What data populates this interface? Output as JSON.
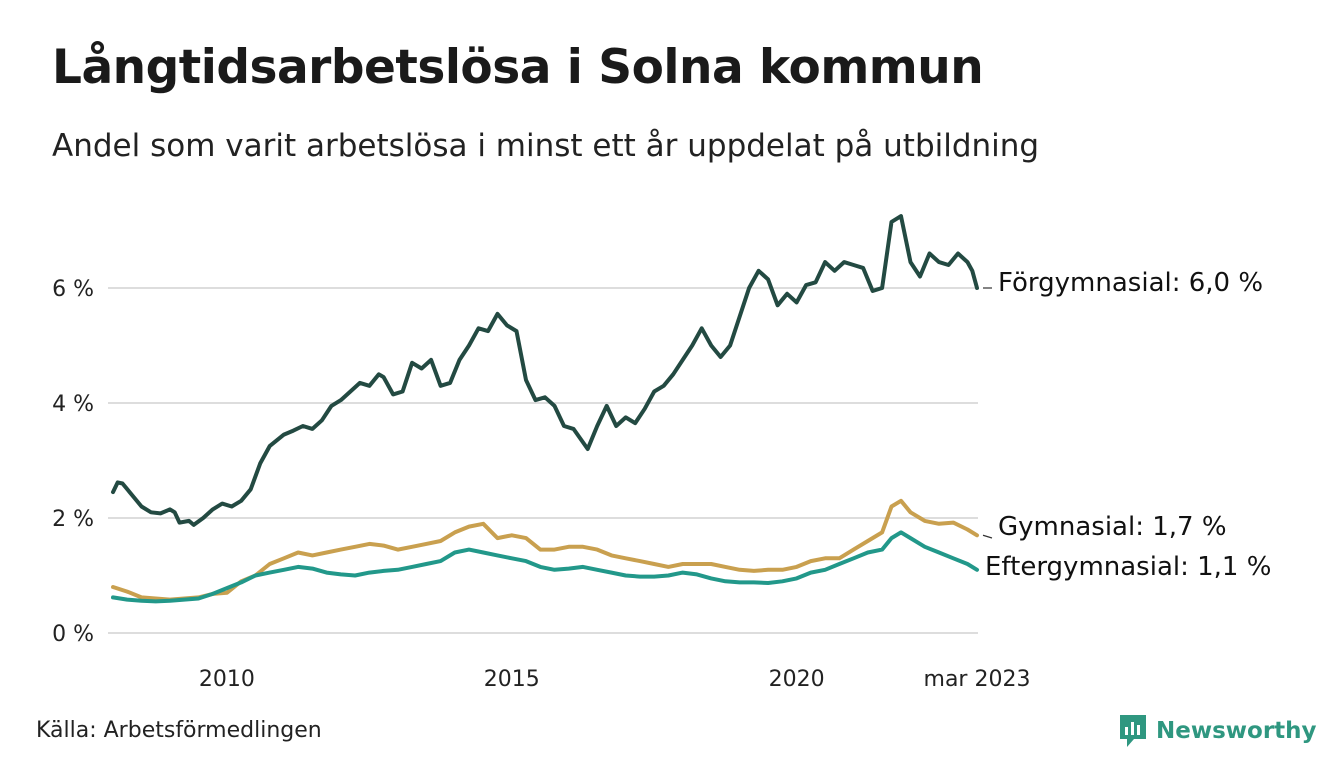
{
  "title": "Långtidsarbetslösa i Solna kommun",
  "subtitle": "Andel som varit arbetslösa i minst ett år uppdelat på utbildning",
  "source": "Källa: Arbetsförmedlingen",
  "logo_text": "Newsworthy",
  "colors": {
    "forgymnasial": "#234a42",
    "gymnasial": "#c9a04f",
    "eftergymnasial": "#22988a",
    "grid": "#dddddd",
    "logo": "#2f9780"
  },
  "chart_data": {
    "type": "line",
    "x_range": [
      "2008-01",
      "2023-03"
    ],
    "ylim": [
      0,
      7.5
    ],
    "yticks": [
      0,
      2,
      4,
      6
    ],
    "ytick_labels": [
      "0 %",
      "2 %",
      "4 %",
      "6 %"
    ],
    "xticks": [
      "2010-01",
      "2015-01",
      "2020-01",
      "2023-03"
    ],
    "xtick_labels": [
      "2010",
      "2015",
      "2020",
      "mar 2023"
    ],
    "grid": true,
    "series": [
      {
        "name": "Förgymnasial",
        "end_label": "Förgymnasial: 6,0 %",
        "color": "#234a42",
        "points": [
          [
            "2008-01",
            2.45
          ],
          [
            "2008-02",
            2.62
          ],
          [
            "2008-03",
            2.6
          ],
          [
            "2008-05",
            2.4
          ],
          [
            "2008-07",
            2.2
          ],
          [
            "2008-09",
            2.1
          ],
          [
            "2008-11",
            2.08
          ],
          [
            "2009-01",
            2.15
          ],
          [
            "2009-02",
            2.1
          ],
          [
            "2009-03",
            1.92
          ],
          [
            "2009-05",
            1.95
          ],
          [
            "2009-06",
            1.88
          ],
          [
            "2009-08",
            2.0
          ],
          [
            "2009-10",
            2.15
          ],
          [
            "2009-12",
            2.25
          ],
          [
            "2010-02",
            2.2
          ],
          [
            "2010-04",
            2.3
          ],
          [
            "2010-06",
            2.5
          ],
          [
            "2010-08",
            2.95
          ],
          [
            "2010-10",
            3.25
          ],
          [
            "2011-01",
            3.45
          ],
          [
            "2011-03",
            3.52
          ],
          [
            "2011-05",
            3.6
          ],
          [
            "2011-07",
            3.55
          ],
          [
            "2011-09",
            3.7
          ],
          [
            "2011-11",
            3.95
          ],
          [
            "2012-01",
            4.05
          ],
          [
            "2012-03",
            4.2
          ],
          [
            "2012-05",
            4.35
          ],
          [
            "2012-07",
            4.3
          ],
          [
            "2012-09",
            4.5
          ],
          [
            "2012-10",
            4.45
          ],
          [
            "2012-12",
            4.15
          ],
          [
            "2013-02",
            4.2
          ],
          [
            "2013-04",
            4.7
          ],
          [
            "2013-06",
            4.6
          ],
          [
            "2013-08",
            4.75
          ],
          [
            "2013-10",
            4.3
          ],
          [
            "2013-12",
            4.35
          ],
          [
            "2014-02",
            4.75
          ],
          [
            "2014-04",
            5.0
          ],
          [
            "2014-06",
            5.3
          ],
          [
            "2014-08",
            5.25
          ],
          [
            "2014-10",
            5.55
          ],
          [
            "2014-12",
            5.35
          ],
          [
            "2015-02",
            5.25
          ],
          [
            "2015-04",
            4.4
          ],
          [
            "2015-06",
            4.05
          ],
          [
            "2015-08",
            4.1
          ],
          [
            "2015-10",
            3.95
          ],
          [
            "2015-12",
            3.6
          ],
          [
            "2016-02",
            3.55
          ],
          [
            "2016-05",
            3.2
          ],
          [
            "2016-07",
            3.6
          ],
          [
            "2016-09",
            3.95
          ],
          [
            "2016-11",
            3.6
          ],
          [
            "2017-01",
            3.75
          ],
          [
            "2017-03",
            3.65
          ],
          [
            "2017-05",
            3.9
          ],
          [
            "2017-07",
            4.2
          ],
          [
            "2017-09",
            4.3
          ],
          [
            "2017-11",
            4.5
          ],
          [
            "2018-01",
            4.75
          ],
          [
            "2018-03",
            5.0
          ],
          [
            "2018-05",
            5.3
          ],
          [
            "2018-07",
            5.0
          ],
          [
            "2018-09",
            4.8
          ],
          [
            "2018-11",
            5.0
          ],
          [
            "2019-01",
            5.5
          ],
          [
            "2019-03",
            6.0
          ],
          [
            "2019-05",
            6.3
          ],
          [
            "2019-07",
            6.15
          ],
          [
            "2019-09",
            5.7
          ],
          [
            "2019-11",
            5.9
          ],
          [
            "2020-01",
            5.75
          ],
          [
            "2020-03",
            6.05
          ],
          [
            "2020-05",
            6.1
          ],
          [
            "2020-07",
            6.45
          ],
          [
            "2020-09",
            6.3
          ],
          [
            "2020-11",
            6.45
          ],
          [
            "2021-01",
            6.4
          ],
          [
            "2021-03",
            6.35
          ],
          [
            "2021-05",
            5.95
          ],
          [
            "2021-07",
            6.0
          ],
          [
            "2021-09",
            7.15
          ],
          [
            "2021-11",
            7.25
          ],
          [
            "2022-01",
            6.45
          ],
          [
            "2022-03",
            6.2
          ],
          [
            "2022-05",
            6.6
          ],
          [
            "2022-07",
            6.45
          ],
          [
            "2022-09",
            6.4
          ],
          [
            "2022-11",
            6.6
          ],
          [
            "2023-01",
            6.45
          ],
          [
            "2023-02",
            6.3
          ],
          [
            "2023-03",
            6.0
          ]
        ]
      },
      {
        "name": "Gymnasial",
        "end_label": "Gymnasial: 1,7 %",
        "color": "#c9a04f",
        "points": [
          [
            "2008-01",
            0.8
          ],
          [
            "2008-04",
            0.72
          ],
          [
            "2008-07",
            0.62
          ],
          [
            "2008-10",
            0.6
          ],
          [
            "2009-01",
            0.58
          ],
          [
            "2009-04",
            0.6
          ],
          [
            "2009-07",
            0.62
          ],
          [
            "2009-10",
            0.68
          ],
          [
            "2010-01",
            0.7
          ],
          [
            "2010-04",
            0.9
          ],
          [
            "2010-07",
            1.0
          ],
          [
            "2010-10",
            1.2
          ],
          [
            "2011-01",
            1.3
          ],
          [
            "2011-04",
            1.4
          ],
          [
            "2011-07",
            1.35
          ],
          [
            "2011-10",
            1.4
          ],
          [
            "2012-01",
            1.45
          ],
          [
            "2012-04",
            1.5
          ],
          [
            "2012-07",
            1.55
          ],
          [
            "2012-10",
            1.52
          ],
          [
            "2013-01",
            1.45
          ],
          [
            "2013-04",
            1.5
          ],
          [
            "2013-07",
            1.55
          ],
          [
            "2013-10",
            1.6
          ],
          [
            "2014-01",
            1.75
          ],
          [
            "2014-04",
            1.85
          ],
          [
            "2014-07",
            1.9
          ],
          [
            "2014-10",
            1.65
          ],
          [
            "2015-01",
            1.7
          ],
          [
            "2015-04",
            1.65
          ],
          [
            "2015-07",
            1.45
          ],
          [
            "2015-10",
            1.45
          ],
          [
            "2016-01",
            1.5
          ],
          [
            "2016-04",
            1.5
          ],
          [
            "2016-07",
            1.45
          ],
          [
            "2016-10",
            1.35
          ],
          [
            "2017-01",
            1.3
          ],
          [
            "2017-04",
            1.25
          ],
          [
            "2017-07",
            1.2
          ],
          [
            "2017-10",
            1.15
          ],
          [
            "2018-01",
            1.2
          ],
          [
            "2018-04",
            1.2
          ],
          [
            "2018-07",
            1.2
          ],
          [
            "2018-10",
            1.15
          ],
          [
            "2019-01",
            1.1
          ],
          [
            "2019-04",
            1.08
          ],
          [
            "2019-07",
            1.1
          ],
          [
            "2019-10",
            1.1
          ],
          [
            "2020-01",
            1.15
          ],
          [
            "2020-04",
            1.25
          ],
          [
            "2020-07",
            1.3
          ],
          [
            "2020-10",
            1.3
          ],
          [
            "2021-01",
            1.45
          ],
          [
            "2021-04",
            1.6
          ],
          [
            "2021-07",
            1.75
          ],
          [
            "2021-09",
            2.2
          ],
          [
            "2021-11",
            2.3
          ],
          [
            "2022-01",
            2.1
          ],
          [
            "2022-04",
            1.95
          ],
          [
            "2022-07",
            1.9
          ],
          [
            "2022-10",
            1.92
          ],
          [
            "2023-01",
            1.8
          ],
          [
            "2023-03",
            1.7
          ]
        ]
      },
      {
        "name": "Eftergymnasial",
        "end_label": "Eftergymnasial: 1,1 %",
        "color": "#22988a",
        "points": [
          [
            "2008-01",
            0.62
          ],
          [
            "2008-04",
            0.58
          ],
          [
            "2008-07",
            0.56
          ],
          [
            "2008-10",
            0.55
          ],
          [
            "2009-01",
            0.56
          ],
          [
            "2009-04",
            0.58
          ],
          [
            "2009-07",
            0.6
          ],
          [
            "2009-10",
            0.68
          ],
          [
            "2010-01",
            0.78
          ],
          [
            "2010-04",
            0.88
          ],
          [
            "2010-07",
            1.0
          ],
          [
            "2010-10",
            1.05
          ],
          [
            "2011-01",
            1.1
          ],
          [
            "2011-04",
            1.15
          ],
          [
            "2011-07",
            1.12
          ],
          [
            "2011-10",
            1.05
          ],
          [
            "2012-01",
            1.02
          ],
          [
            "2012-04",
            1.0
          ],
          [
            "2012-07",
            1.05
          ],
          [
            "2012-10",
            1.08
          ],
          [
            "2013-01",
            1.1
          ],
          [
            "2013-04",
            1.15
          ],
          [
            "2013-07",
            1.2
          ],
          [
            "2013-10",
            1.25
          ],
          [
            "2014-01",
            1.4
          ],
          [
            "2014-04",
            1.45
          ],
          [
            "2014-07",
            1.4
          ],
          [
            "2014-10",
            1.35
          ],
          [
            "2015-01",
            1.3
          ],
          [
            "2015-04",
            1.25
          ],
          [
            "2015-07",
            1.15
          ],
          [
            "2015-10",
            1.1
          ],
          [
            "2016-01",
            1.12
          ],
          [
            "2016-04",
            1.15
          ],
          [
            "2016-07",
            1.1
          ],
          [
            "2016-10",
            1.05
          ],
          [
            "2017-01",
            1.0
          ],
          [
            "2017-04",
            0.98
          ],
          [
            "2017-07",
            0.98
          ],
          [
            "2017-10",
            1.0
          ],
          [
            "2018-01",
            1.05
          ],
          [
            "2018-04",
            1.02
          ],
          [
            "2018-07",
            0.95
          ],
          [
            "2018-10",
            0.9
          ],
          [
            "2019-01",
            0.88
          ],
          [
            "2019-04",
            0.88
          ],
          [
            "2019-07",
            0.87
          ],
          [
            "2019-10",
            0.9
          ],
          [
            "2020-01",
            0.95
          ],
          [
            "2020-04",
            1.05
          ],
          [
            "2020-07",
            1.1
          ],
          [
            "2020-10",
            1.2
          ],
          [
            "2021-01",
            1.3
          ],
          [
            "2021-04",
            1.4
          ],
          [
            "2021-07",
            1.45
          ],
          [
            "2021-09",
            1.65
          ],
          [
            "2021-11",
            1.75
          ],
          [
            "2022-01",
            1.65
          ],
          [
            "2022-04",
            1.5
          ],
          [
            "2022-07",
            1.4
          ],
          [
            "2022-10",
            1.3
          ],
          [
            "2023-01",
            1.2
          ],
          [
            "2023-03",
            1.1
          ]
        ]
      }
    ]
  }
}
